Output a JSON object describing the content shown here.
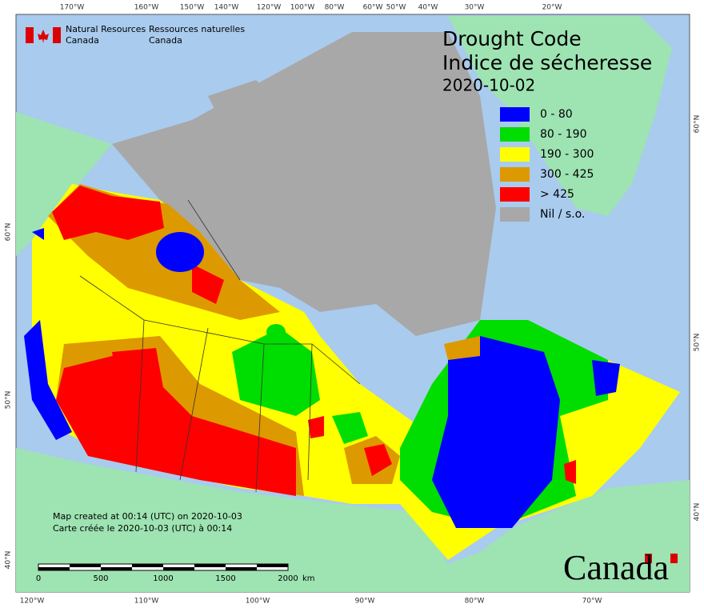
{
  "agency": {
    "en_line1": "Natural Resources",
    "en_line2": "Canada",
    "fr_line1": "Ressources naturelles",
    "fr_line2": "Canada"
  },
  "title": {
    "en": "Drought Code",
    "fr": "Indice de sécheresse",
    "date": "2020-10-02"
  },
  "legend": [
    {
      "label": "0 - 80",
      "color": "#0000ff"
    },
    {
      "label": "80 - 190",
      "color": "#00dd00"
    },
    {
      "label": "190 - 300",
      "color": "#ffff00"
    },
    {
      "label": "300 - 425",
      "color": "#dd9900"
    },
    {
      "label": "> 425",
      "color": "#ff0000"
    },
    {
      "label": "Nil / s.o.",
      "color": "#a8a8a8"
    }
  ],
  "notes": [
    "Map created at 00:14 (UTC) on 2020-10-03",
    "Carte créée le 2020-10-03 (UTC) à 00:14"
  ],
  "scale_bar": {
    "labels": [
      "0",
      "500",
      "1000",
      "1500",
      "2000"
    ],
    "unit": "km"
  },
  "graticule": {
    "top": [
      "170°W",
      "160°W",
      "150°W",
      "140°W",
      "120°W",
      "100°W",
      "80°W",
      "60°W",
      "50°W",
      "40°W",
      "30°W",
      "20°W"
    ],
    "bottom": [
      "120°W",
      "110°W",
      "100°W",
      "90°W",
      "80°W",
      "70°W"
    ],
    "left": [
      "60°N",
      "50°N",
      "40°N"
    ],
    "right": [
      "60°N",
      "50°N",
      "40°N"
    ]
  },
  "wordmark": "Canada"
}
